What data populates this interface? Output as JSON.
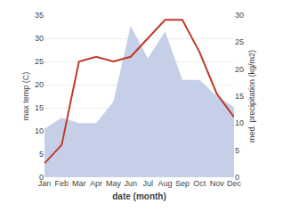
{
  "chart_data": {
    "type": "line",
    "xlabel": "date (month)",
    "ylabel": "max temp (C)",
    "y2label": "med. precipitation (kg/m2)",
    "categories": [
      "Jan",
      "Feb",
      "Mar",
      "Apr",
      "May",
      "Jun",
      "Jul",
      "Aug",
      "Sep",
      "Oct",
      "Nov",
      "Dec"
    ],
    "series": [
      {
        "type": "area",
        "color": "#c5cfe8",
        "axis": "y2",
        "values": [
          9,
          11,
          10,
          10,
          14,
          28,
          22,
          27,
          18,
          18,
          15,
          13
        ]
      },
      {
        "type": "line",
        "color": "#c0392b",
        "values": [
          3,
          7,
          25,
          26,
          25,
          26,
          30,
          34,
          34,
          27,
          18,
          13
        ]
      }
    ],
    "ylim": [
      0,
      35
    ],
    "yticks": [
      0,
      5,
      10,
      15,
      20,
      25,
      30,
      35
    ],
    "y2lim": [
      0,
      30
    ],
    "y2ticks": [
      0,
      5,
      10,
      15,
      20,
      25,
      30
    ],
    "grid": true
  }
}
